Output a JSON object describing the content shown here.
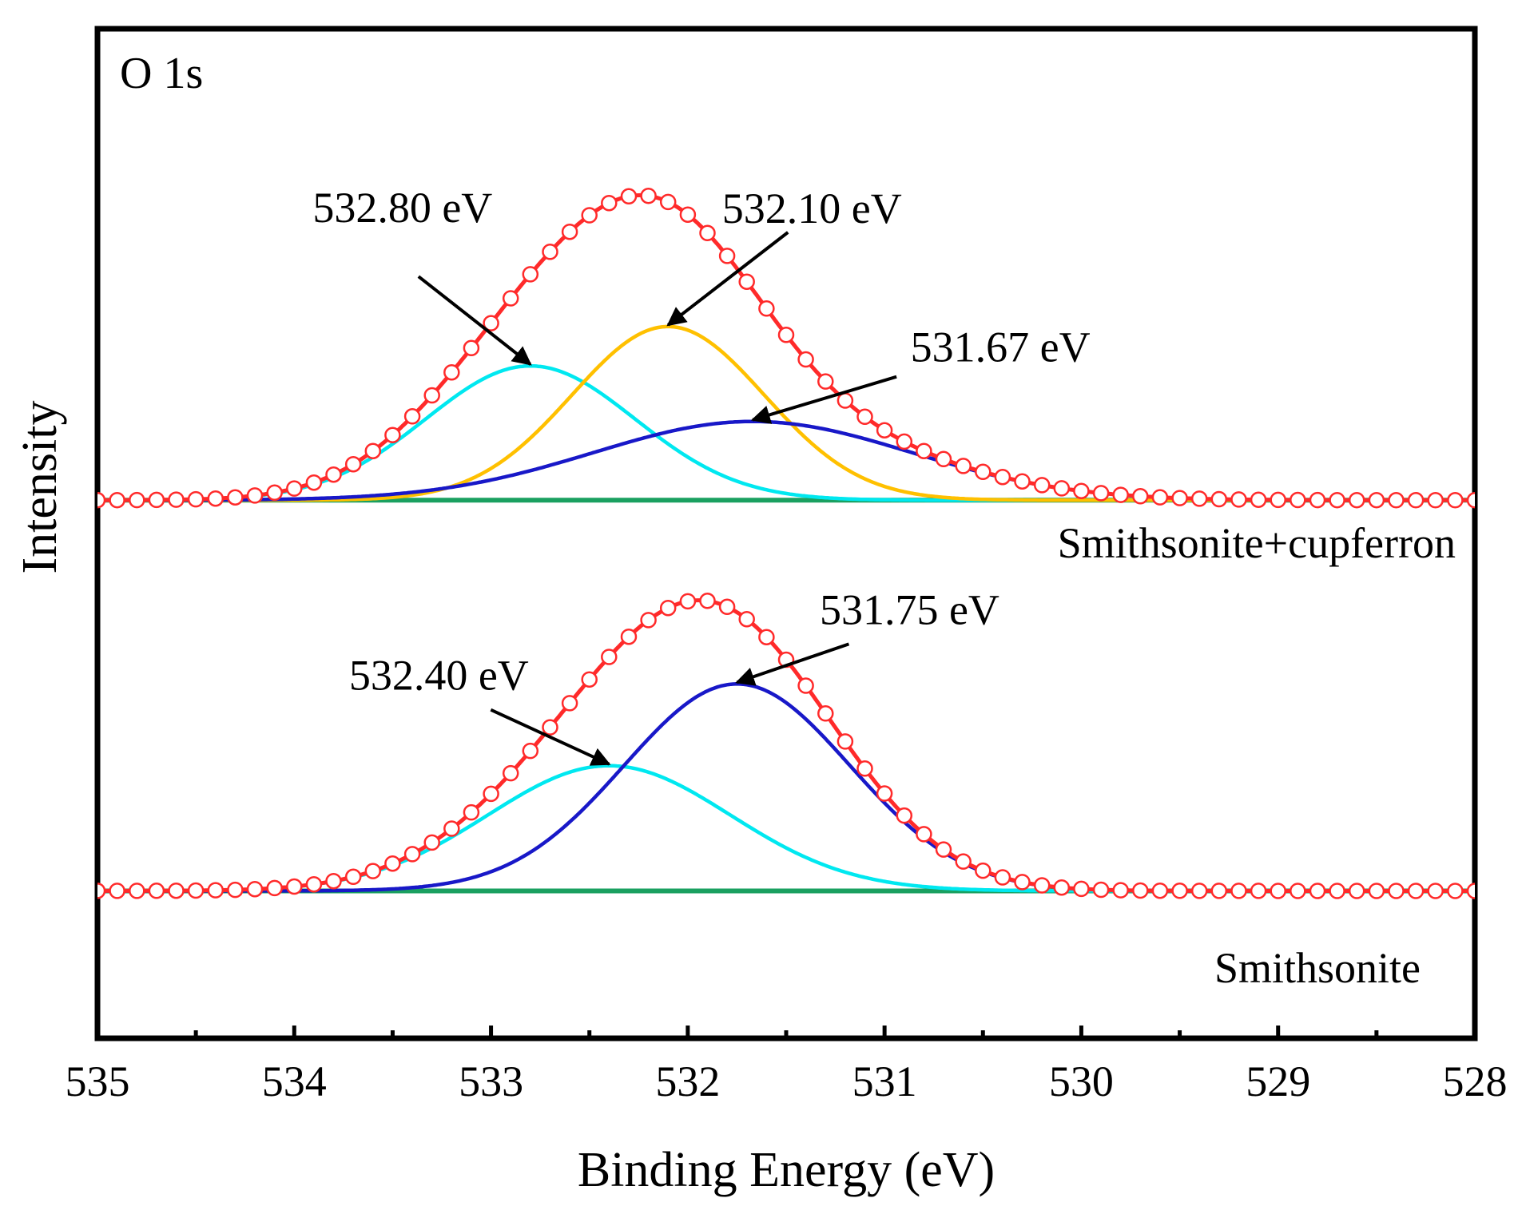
{
  "chart_data": {
    "type": "line",
    "title": "O 1s",
    "xlabel": "Binding Energy (eV)",
    "ylabel": "Intensity",
    "xlim": [
      535,
      528
    ],
    "x_reversed": true,
    "xticks": [
      535,
      534,
      533,
      532,
      531,
      530,
      529,
      528
    ],
    "xtick_labels": [
      "535",
      "534",
      "533",
      "532",
      "531",
      "530",
      "529",
      "528"
    ],
    "minor_xticks": [
      534.5,
      533.5,
      532.5,
      531.5,
      530.5,
      529.5,
      528.5
    ],
    "y_ticks_shown": false,
    "ylim": [
      0,
      1
    ],
    "grid": false,
    "colors": {
      "raw": "#ff2a2a",
      "raw_marker_edge": "#ff2a2a",
      "raw_marker_fill": "#ffffff",
      "baseline": "#1aa060",
      "peak_cyan": "#00e8f0",
      "peak_orange": "#ffc000",
      "peak_blue": "#1818c8",
      "frame": "#000000"
    },
    "panels": [
      {
        "label": "Smithsonite+cupferron",
        "label_position": "below-right of upper spectrum",
        "baseline": 0.533,
        "raw_data_marker_step_ev": 0.1,
        "components": [
          {
            "name": "532.80 eV",
            "center": 532.8,
            "height": 0.133,
            "fwhm": 1.25,
            "color_key": "peak_cyan"
          },
          {
            "name": "532.10 eV",
            "center": 532.1,
            "height": 0.172,
            "fwhm": 1.15,
            "color_key": "peak_orange"
          },
          {
            "name": "531.67 eV",
            "center": 531.67,
            "height": 0.078,
            "fwhm": 1.9,
            "color_key": "peak_blue"
          }
        ],
        "annotations": [
          {
            "text": "532.80 eV",
            "peak_index": 0
          },
          {
            "text": "532.10 eV",
            "peak_index": 1
          },
          {
            "text": "531.67 eV",
            "peak_index": 2
          }
        ]
      },
      {
        "label": "Smithsonite",
        "label_position": "below-right of lower spectrum",
        "baseline": 0.146,
        "raw_data_marker_step_ev": 0.1,
        "components": [
          {
            "name": "532.40 eV",
            "center": 532.4,
            "height": 0.124,
            "fwhm": 1.45,
            "color_key": "peak_cyan"
          },
          {
            "name": "531.75 eV",
            "center": 531.75,
            "height": 0.205,
            "fwhm": 1.35,
            "color_key": "peak_blue"
          }
        ],
        "annotations": [
          {
            "text": "532.40 eV",
            "peak_index": 0
          },
          {
            "text": "531.75 eV",
            "peak_index": 1
          }
        ]
      }
    ]
  }
}
